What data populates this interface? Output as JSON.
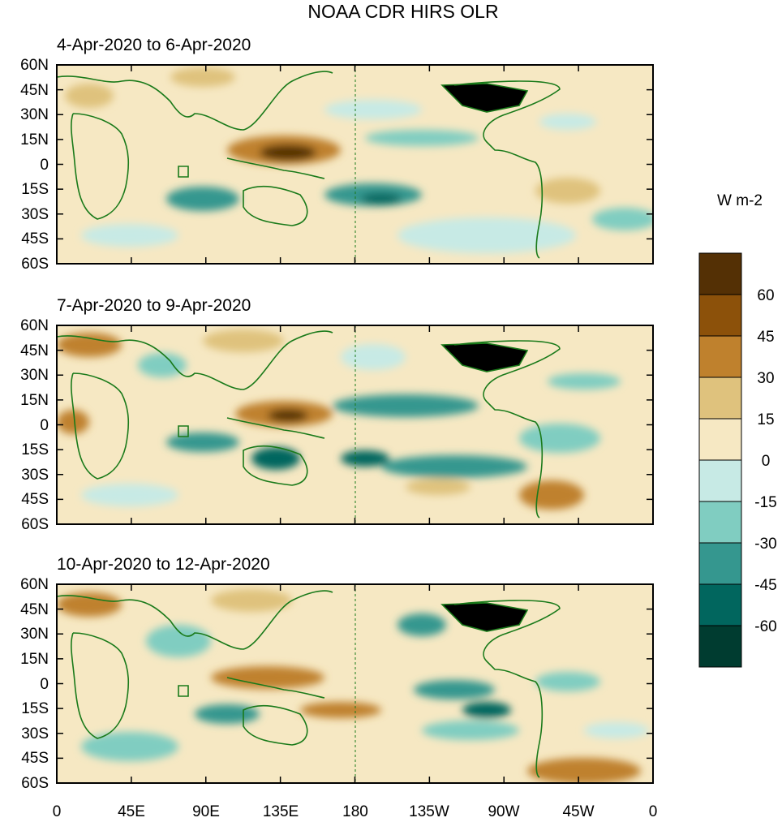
{
  "figure": {
    "title": "NOAA CDR HIRS OLR",
    "units": "W m-2"
  },
  "map": {
    "central_longitude": 180,
    "lon_range": [
      0,
      360
    ],
    "lat_range": [
      -60,
      60
    ],
    "longitude_ticks": [
      "0",
      "45E",
      "90E",
      "135E",
      "180",
      "135W",
      "90W",
      "45W",
      "0"
    ],
    "latitude_ticks": [
      "60N",
      "45N",
      "30N",
      "15N",
      "0",
      "15S",
      "30S",
      "45S",
      "60S"
    ],
    "dateline_marker": "dashed line at 180"
  },
  "panels": [
    {
      "title": "4-Apr-2020 to 6-Apr-2020"
    },
    {
      "title": "7-Apr-2020 to 9-Apr-2020"
    },
    {
      "title": "10-Apr-2020 to 12-Apr-2020"
    }
  ],
  "colorbar": {
    "labels": [
      "60",
      "45",
      "30",
      "15",
      "0",
      "-15",
      "-30",
      "-45",
      "-60"
    ],
    "colors": [
      "#543005",
      "#8c510a",
      "#bf812d",
      "#dfc27d",
      "#f6e8c3",
      "#c7eae5",
      "#80cdc1",
      "#35978f",
      "#01665e",
      "#003c30"
    ]
  },
  "styles": {
    "coast_color": "#1a7a1a",
    "frame_color": "#000000"
  }
}
